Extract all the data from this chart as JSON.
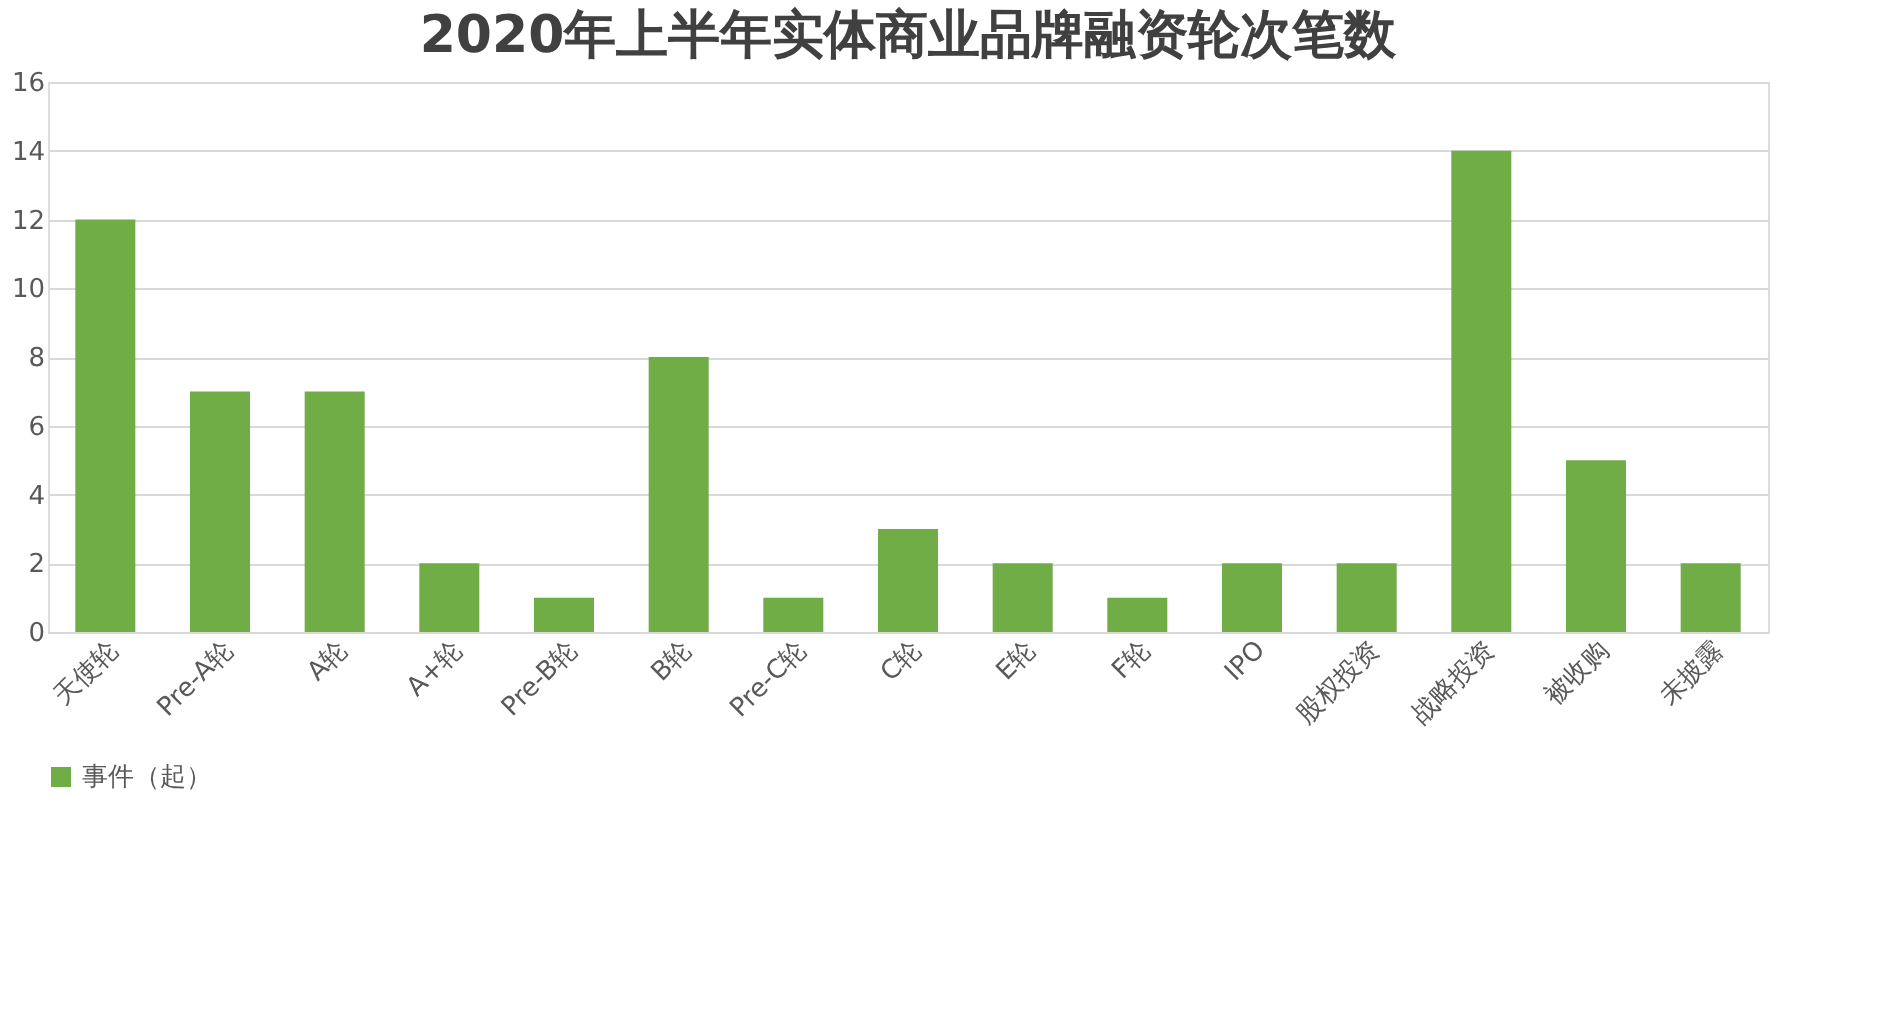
{
  "chart_data": {
    "type": "bar",
    "title": "2020年上半年实体商业品牌融资轮次笔数",
    "categories": [
      "天使轮",
      "Pre-A轮",
      "A轮",
      "A+轮",
      "Pre-B轮",
      "B轮",
      "Pre-C轮",
      "C轮",
      "E轮",
      "F轮",
      "IPO",
      "股权投资",
      "战略投资",
      "被收购",
      "未披露"
    ],
    "series": [
      {
        "name": "事件（起）",
        "color": "#70ad47",
        "values": [
          12,
          7,
          7,
          2,
          1,
          8,
          1,
          3,
          2,
          1,
          2,
          2,
          14,
          5,
          2
        ]
      }
    ],
    "ylim": [
      0,
      16
    ],
    "yticks": [
      0,
      2,
      4,
      6,
      8,
      10,
      12,
      14,
      16
    ],
    "grid": "y",
    "legend": "bottom"
  }
}
